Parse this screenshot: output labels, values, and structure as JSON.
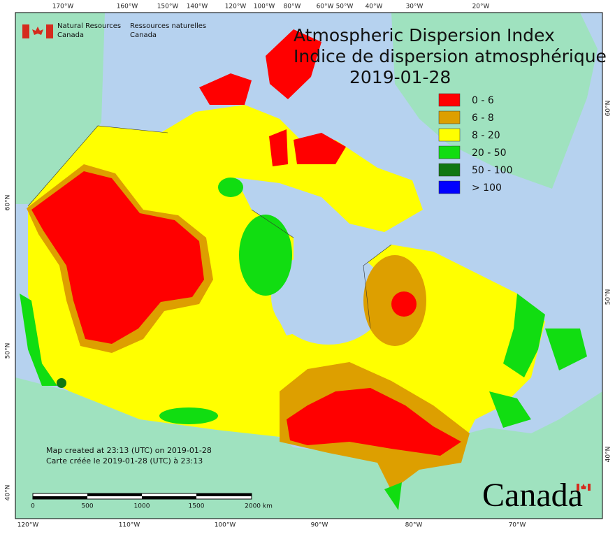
{
  "header": {
    "agency_en_1": "Natural Resources",
    "agency_en_2": "Canada",
    "agency_fr_1": "Ressources naturelles",
    "agency_fr_2": "Canada"
  },
  "title": {
    "line1": "Atmospheric Dispersion Index",
    "line2": "Indice de dispersion atmosphérique",
    "date": "2019-01-28"
  },
  "legend": [
    {
      "label": "0 - 6",
      "color": "#ff0000"
    },
    {
      "label": "6 - 8",
      "color": "#dd9f00"
    },
    {
      "label": "8 - 20",
      "color": "#ffff00"
    },
    {
      "label": "20 - 50",
      "color": "#11dd11"
    },
    {
      "label": "50 - 100",
      "color": "#117711"
    },
    {
      "label": "> 100",
      "color": "#0000ff"
    }
  ],
  "graticule": {
    "top": [
      "170°W",
      "160°W",
      "150°W",
      "140°W",
      "120°W",
      "100°W",
      "80°W",
      "60°W",
      "50°W",
      "40°W",
      "30°W",
      "20°W"
    ],
    "bottom": [
      "120°W",
      "110°W",
      "100°W",
      "90°W",
      "80°W",
      "70°W"
    ],
    "left": [
      "60°N",
      "50°N",
      "40°N"
    ],
    "right": [
      "60°N",
      "50°N",
      "40°N"
    ]
  },
  "footer": {
    "line1": "Map created at 23:13 (UTC) on 2019-01-28",
    "line2": "Carte créée le 2019-01-28 (UTC) à 23:13"
  },
  "scale_bar": {
    "labels": [
      "0",
      "500",
      "1000",
      "1500",
      "2000 km"
    ]
  },
  "wordmark": "Canada"
}
